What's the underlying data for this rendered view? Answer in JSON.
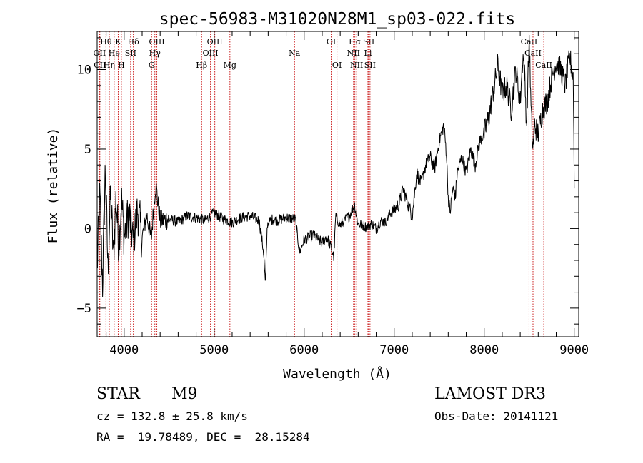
{
  "chart_data": {
    "type": "line",
    "title": "spec-56983-M31020N28M1_sp03-022.fits",
    "xlabel": "Wavelength (Å)",
    "ylabel": "Flux (relative)",
    "xlim": [
      3700,
      9050
    ],
    "ylim": [
      -6.8,
      12.4
    ],
    "xticks": [
      4000,
      5000,
      6000,
      7000,
      8000,
      9000
    ],
    "xtick_labels": [
      "4000",
      "5000",
      "6000",
      "7000",
      "8000",
      "9000"
    ],
    "yticks": [
      -5,
      0,
      5,
      10
    ],
    "ytick_labels": [
      "−5",
      "0",
      "5",
      "10"
    ],
    "spectrum": {
      "x": [
        3700,
        3730,
        3760,
        3790,
        3820,
        3850,
        3880,
        3910,
        3940,
        3970,
        4000,
        4050,
        4100,
        4150,
        4200,
        4250,
        4300,
        4350,
        4400,
        4500,
        4600,
        4700,
        4800,
        4900,
        5000,
        5100,
        5200,
        5300,
        5400,
        5500,
        5550,
        5570,
        5590,
        5650,
        5700,
        5800,
        5900,
        5950,
        6000,
        6100,
        6200,
        6250,
        6300,
        6330,
        6350,
        6400,
        6450,
        6500,
        6560,
        6580,
        6600,
        6650,
        6700,
        6750,
        6800,
        6850,
        6900,
        6950,
        7000,
        7050,
        7100,
        7150,
        7200,
        7250,
        7300,
        7350,
        7400,
        7450,
        7500,
        7550,
        7580,
        7600,
        7620,
        7650,
        7680,
        7700,
        7750,
        7800,
        7850,
        7900,
        7950,
        8000,
        8050,
        8100,
        8150,
        8200,
        8250,
        8300,
        8350,
        8400,
        8430,
        8450,
        8470,
        8500,
        8520,
        8540,
        8560,
        8600,
        8650,
        8700,
        8750,
        8800,
        8850,
        8900,
        8950,
        8990,
        9000
      ],
      "y": [
        -2.5,
        2.0,
        -3.5,
        3.8,
        -2.5,
        2.2,
        -1.8,
        2.0,
        -1.0,
        1.8,
        -0.5,
        1.0,
        -0.8,
        1.2,
        -0.6,
        0.9,
        -0.7,
        2.8,
        0.5,
        0.6,
        0.4,
        0.8,
        0.7,
        0.5,
        1.0,
        0.6,
        0.4,
        0.7,
        0.8,
        0.5,
        -1.5,
        -3.6,
        0.3,
        0.6,
        0.5,
        0.7,
        0.6,
        -1.5,
        -0.7,
        -0.4,
        -0.9,
        -0.5,
        -1.2,
        -1.8,
        0.8,
        0.2,
        0.5,
        0.8,
        1.5,
        0.8,
        0.3,
        0.2,
        0.1,
        0.3,
        0.0,
        0.5,
        0.4,
        0.9,
        1.2,
        1.5,
        2.5,
        1.6,
        0.8,
        3.5,
        2.8,
        4.0,
        4.5,
        3.8,
        5.5,
        6.5,
        4.8,
        2.0,
        1.0,
        2.5,
        2.0,
        3.5,
        4.5,
        3.5,
        5.0,
        4.0,
        5.5,
        6.0,
        7.0,
        8.5,
        10.3,
        8.5,
        9.0,
        7.5,
        10.0,
        8.0,
        11.0,
        9.5,
        6.5,
        12.0,
        7.5,
        5.0,
        6.5,
        6.0,
        7.5,
        8.0,
        9.5,
        10.5,
        10.0,
        9.0,
        10.8,
        9.5,
        2.8
      ]
    },
    "emission_lines": [
      {
        "label": "Hθ",
        "x": 3798,
        "row": 1
      },
      {
        "label": "OII",
        "x": 3727,
        "row": 2
      },
      {
        "label": "CII",
        "x": 3730,
        "row": 3
      },
      {
        "label": "Hη",
        "x": 3835,
        "row": 3
      },
      {
        "label": "He",
        "x": 3889,
        "row": 2
      },
      {
        "label": "K",
        "x": 3934,
        "row": 1
      },
      {
        "label": "SII",
        "x": 4072,
        "row": 2
      },
      {
        "label": "H",
        "x": 3969,
        "row": 3
      },
      {
        "label": "Hδ",
        "x": 4102,
        "row": 1
      },
      {
        "label": "OIII",
        "x": 4363,
        "row": 1
      },
      {
        "label": "Hγ",
        "x": 4341,
        "row": 2
      },
      {
        "label": "G",
        "x": 4305,
        "row": 3
      },
      {
        "label": "Hβ",
        "x": 4861,
        "row": 3
      },
      {
        "label": "OIII",
        "x": 4959,
        "row": 2
      },
      {
        "label": "OIII",
        "x": 5007,
        "row": 1
      },
      {
        "label": "Mg",
        "x": 5175,
        "row": 3
      },
      {
        "label": "Na",
        "x": 5893,
        "row": 2
      },
      {
        "label": "OI",
        "x": 6300,
        "row": 1
      },
      {
        "label": "OI",
        "x": 6364,
        "row": 3
      },
      {
        "label": "Hα",
        "x": 6563,
        "row": 1
      },
      {
        "label": "NII",
        "x": 6548,
        "row": 2
      },
      {
        "label": "NII",
        "x": 6583,
        "row": 3
      },
      {
        "label": "SII",
        "x": 6717,
        "row": 1
      },
      {
        "label": "Li",
        "x": 6708,
        "row": 2
      },
      {
        "label": "SII",
        "x": 6731,
        "row": 3
      },
      {
        "label": "CaII",
        "x": 8498,
        "row": 1
      },
      {
        "label": "CaII",
        "x": 8542,
        "row": 2
      },
      {
        "label": "CaII",
        "x": 8662,
        "row": 3
      }
    ]
  },
  "info": {
    "object_class": "STAR",
    "subclass": "M9",
    "survey": "LAMOST DR3",
    "cz": "cz = 132.8 ± 25.8 km/s",
    "obs_date": "Obs-Date: 20141121",
    "coords": "RA =  19.78489, DEC =  28.15284"
  }
}
